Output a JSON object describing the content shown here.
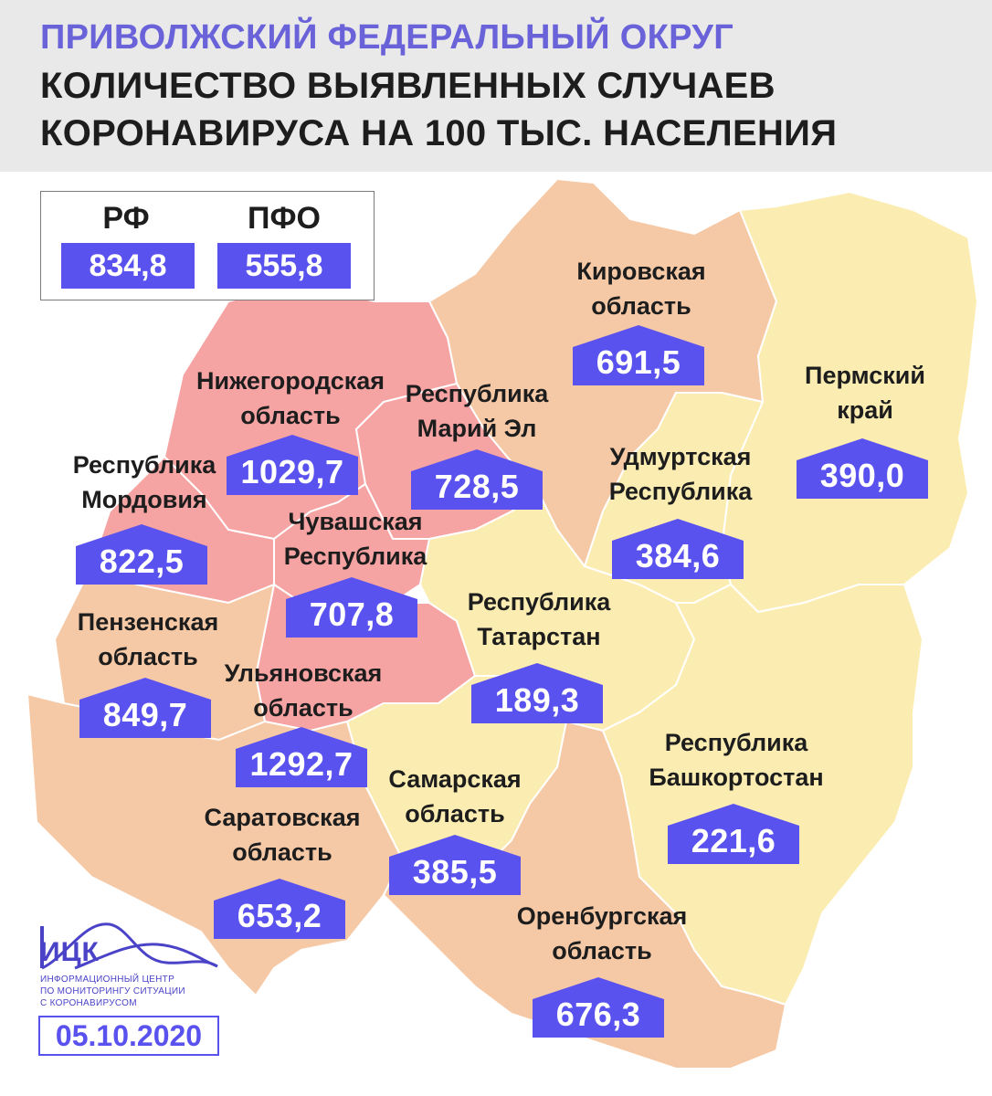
{
  "header": {
    "title_line1": "ПРИВОЛЖСКИЙ ФЕДЕРАЛЬНЫЙ ОКРУГ",
    "title_line2": "КОЛИЧЕСТВО ВЫЯВЛЕННЫХ СЛУЧАЕВ",
    "title_line3": "КОРОНАВИРУСА НА 100 ТЫС. НАСЕЛЕНИЯ"
  },
  "legend": {
    "rf_label": "РФ",
    "rf_value": "834,8",
    "pfo_label": "ПФО",
    "pfo_value": "555,8"
  },
  "regions": {
    "kirov": {
      "name1": "Кировская",
      "name2": "область",
      "value": "691,5"
    },
    "perm": {
      "name1": "Пермский",
      "name2": "край",
      "value": "390,0"
    },
    "nizhny": {
      "name1": "Нижегородская",
      "name2": "область",
      "value": "1029,7"
    },
    "mari": {
      "name1": "Республика",
      "name2": "Марий Эл",
      "value": "728,5"
    },
    "udmurt": {
      "name1": "Удмуртская",
      "name2": "Республика",
      "value": "384,6"
    },
    "mordovia": {
      "name1": "Республика",
      "name2": "Мордовия",
      "value": "822,5"
    },
    "chuvash": {
      "name1": "Чувашская",
      "name2": "Республика",
      "value": "707,8"
    },
    "tatarstan": {
      "name1": "Республика",
      "name2": "Татарстан",
      "value": "189,3"
    },
    "penza": {
      "name1": "Пензенская",
      "name2": "область",
      "value": "849,7"
    },
    "ulyanovsk": {
      "name1": "Ульяновская",
      "name2": "область",
      "value": "1292,7"
    },
    "bashkortostan": {
      "name1": "Республика",
      "name2": "Башкортостан",
      "value": "221,6"
    },
    "samara": {
      "name1": "Самарская",
      "name2": "область",
      "value": "385,5"
    },
    "saratov": {
      "name1": "Саратовская",
      "name2": "область",
      "value": "653,2"
    },
    "orenburg": {
      "name1": "Оренбургская",
      "name2": "область",
      "value": "676,3"
    }
  },
  "logo": {
    "name": "ИЦК",
    "sub1": "ИНФОРМАЦИОННЫЙ ЦЕНТР",
    "sub2": "ПО МОНИТОРИНГУ СИТУАЦИИ",
    "sub3": "С КОРОНАВИРУСОМ"
  },
  "date": "05.10.2020",
  "colors": {
    "high": "#f6a3a3",
    "medium": "#f6c9a6",
    "low": "#fbedb2",
    "badge": "#5a52ee",
    "title_accent": "#6a62d8"
  }
}
